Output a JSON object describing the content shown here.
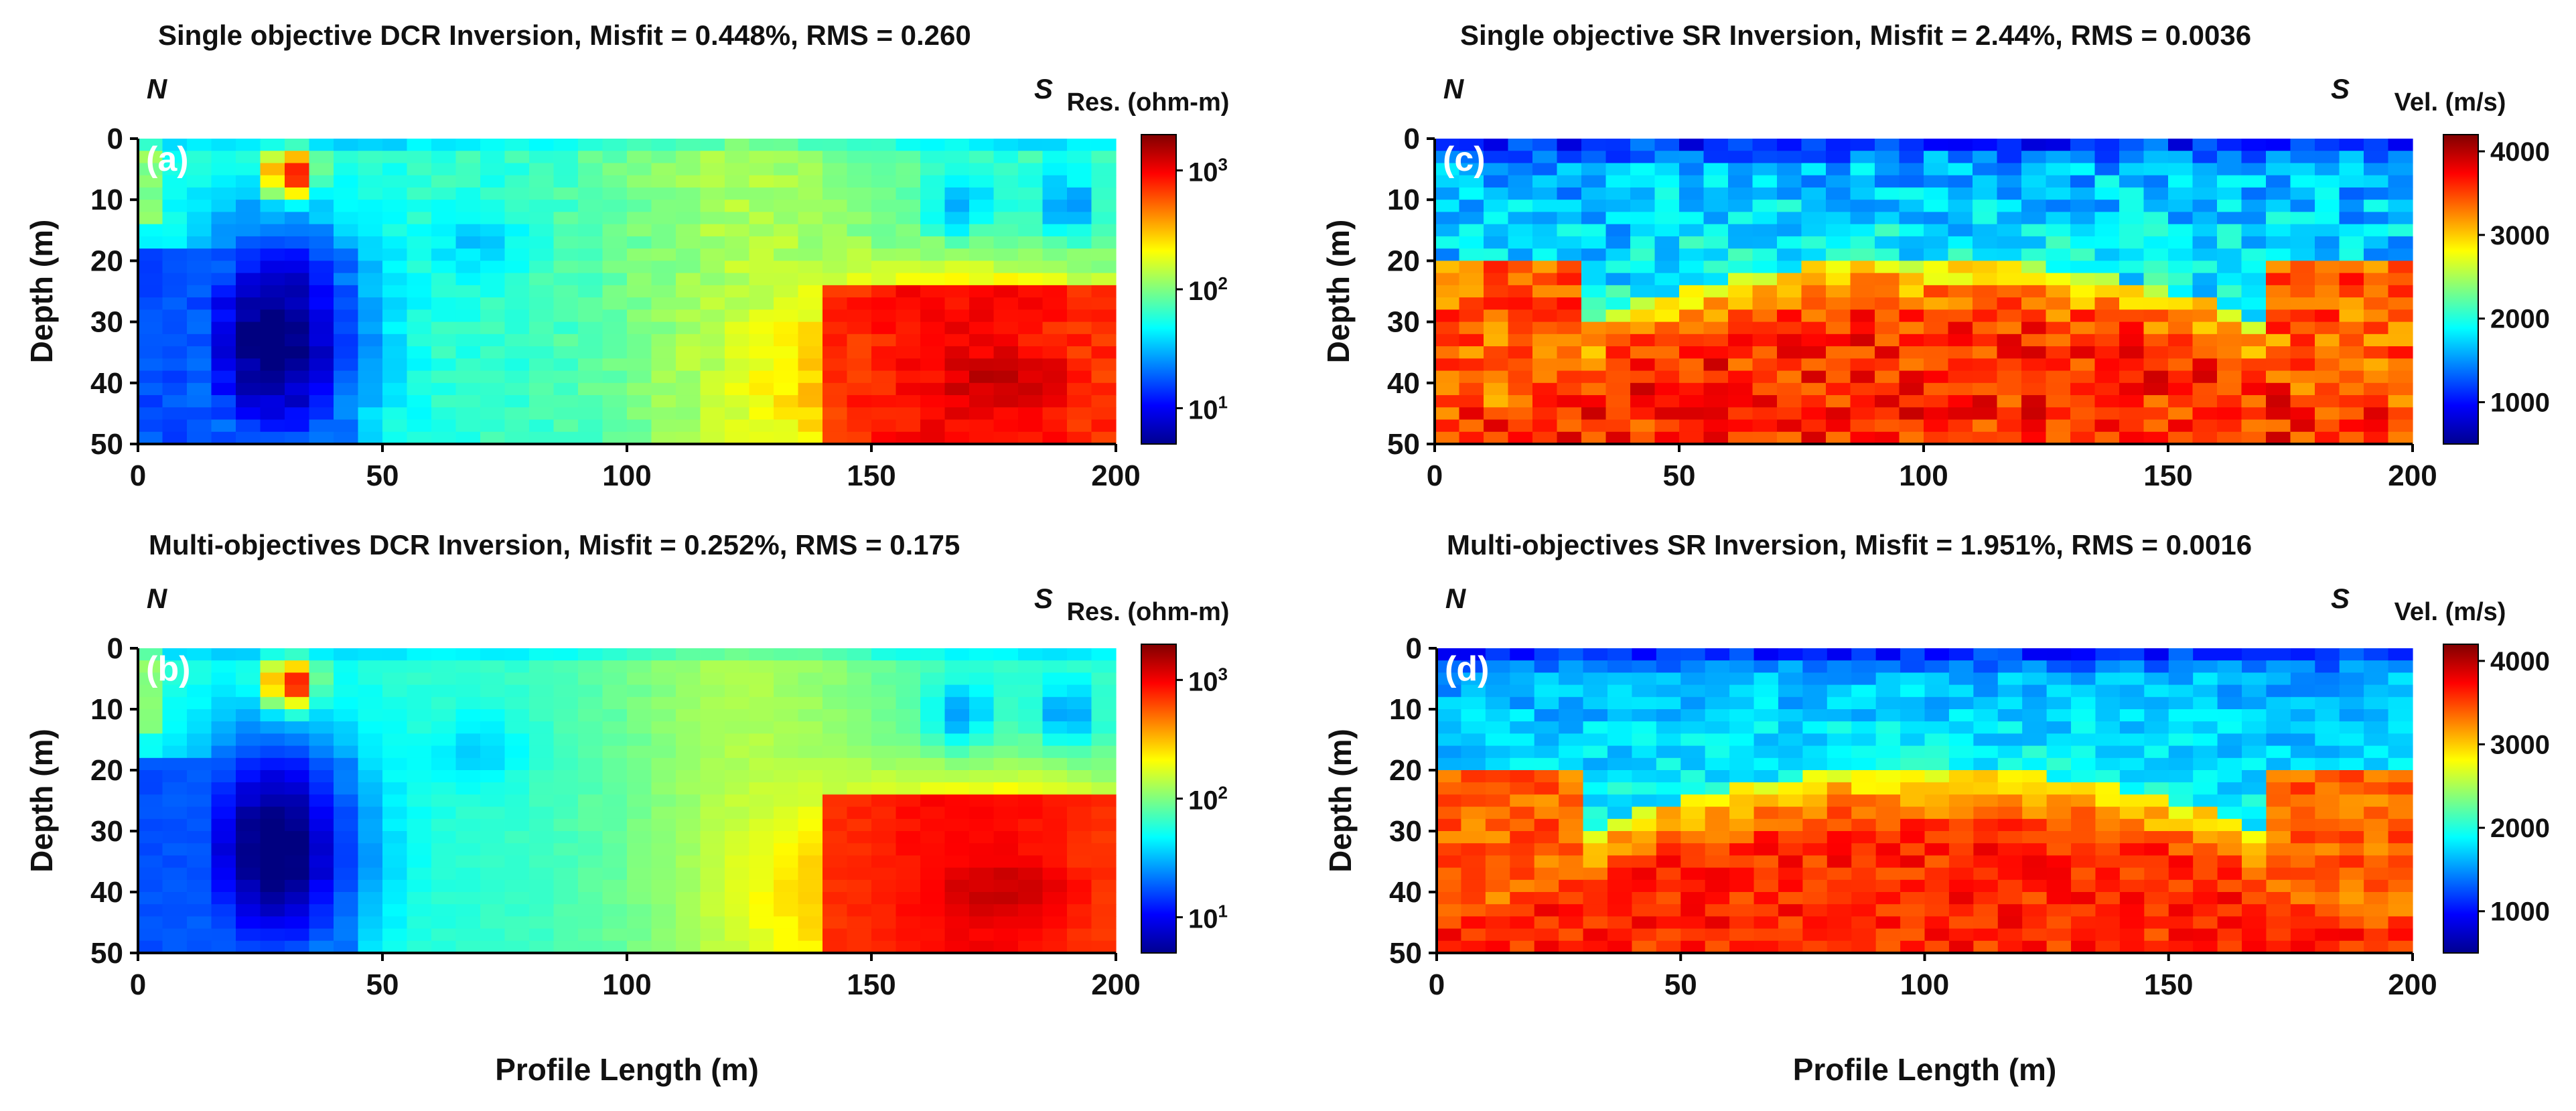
{
  "figure": {
    "xlabel": "Profile Length (m)"
  },
  "chart_data": [
    {
      "id": "a",
      "type": "heatmap",
      "panel_label": "(a)",
      "title": "Single objective DCR Inversion, Misfit = 0.448%, RMS = 0.260",
      "left_dir": "N",
      "right_dir": "S",
      "ylabel": "Depth (m)",
      "xlabel": "",
      "xlim": [
        0,
        200
      ],
      "ylim": [
        0,
        50
      ],
      "xticks": [
        "0",
        "50",
        "100",
        "150",
        "200"
      ],
      "yticks": [
        "0",
        "10",
        "20",
        "30",
        "40",
        "50"
      ],
      "colorbar": {
        "title": "Res. (ohm-m)",
        "scale": "log",
        "range": [
          5,
          2000
        ],
        "ticks": [
          {
            "base": "10",
            "exp": "3"
          },
          {
            "base": "10",
            "exp": "2"
          },
          {
            "base": "10",
            "exp": "1"
          }
        ]
      },
      "model": "dcr",
      "smooth": false
    },
    {
      "id": "c",
      "type": "heatmap",
      "panel_label": "(c)",
      "title": "Single objective SR Inversion, Misfit = 2.44%,  RMS = 0.0036",
      "left_dir": "N",
      "right_dir": "S",
      "ylabel": "Depth (m)",
      "xlabel": "",
      "xlim": [
        0,
        200
      ],
      "ylim": [
        0,
        50
      ],
      "xticks": [
        "0",
        "50",
        "100",
        "150",
        "200"
      ],
      "yticks": [
        "0",
        "10",
        "20",
        "30",
        "40",
        "50"
      ],
      "colorbar": {
        "title": "Vel. (m/s)",
        "scale": "linear",
        "range": [
          500,
          4200
        ],
        "ticks": [
          "4000",
          "3000",
          "2000",
          "1000"
        ]
      },
      "model": "sr",
      "smooth": false
    },
    {
      "id": "b",
      "type": "heatmap",
      "panel_label": "(b)",
      "title": "Multi-objectives DCR Inversion, Misfit = 0.252%, RMS = 0.175",
      "left_dir": "N",
      "right_dir": "S",
      "ylabel": "Depth (m)",
      "xlabel": "Profile Length (m)",
      "xlim": [
        0,
        200
      ],
      "ylim": [
        0,
        50
      ],
      "xticks": [
        "0",
        "50",
        "100",
        "150",
        "200"
      ],
      "yticks": [
        "0",
        "10",
        "20",
        "30",
        "40",
        "50"
      ],
      "colorbar": {
        "title": "Res. (ohm-m)",
        "scale": "log",
        "range": [
          5,
          2000
        ],
        "ticks": [
          {
            "base": "10",
            "exp": "3"
          },
          {
            "base": "10",
            "exp": "2"
          },
          {
            "base": "10",
            "exp": "1"
          }
        ]
      },
      "model": "dcr",
      "smooth": true
    },
    {
      "id": "d",
      "type": "heatmap",
      "panel_label": "(d)",
      "title": "Multi-objectives SR Inversion, Misfit = 1.951%, RMS = 0.0016",
      "left_dir": "N",
      "right_dir": "S",
      "ylabel": "Depth (m)",
      "xlabel": "Profile Length (m)",
      "xlim": [
        0,
        200
      ],
      "ylim": [
        0,
        50
      ],
      "xticks": [
        "0",
        "50",
        "100",
        "150",
        "200"
      ],
      "yticks": [
        "0",
        "10",
        "20",
        "30",
        "40",
        "50"
      ],
      "colorbar": {
        "title": "Vel. (m/s)",
        "scale": "linear",
        "range": [
          500,
          4200
        ],
        "ticks": [
          "4000",
          "3000",
          "2000",
          "1000"
        ]
      },
      "model": "sr",
      "smooth": true
    }
  ]
}
